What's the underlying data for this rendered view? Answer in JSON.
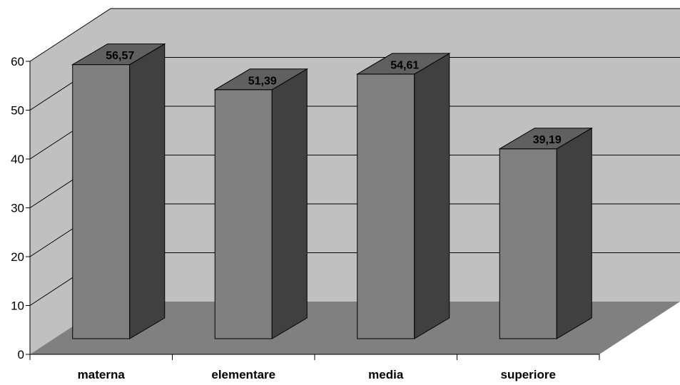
{
  "chart_data": {
    "type": "bar",
    "categories": [
      "materna",
      "elementare",
      "media",
      "superiore"
    ],
    "values": [
      56.57,
      51.39,
      54.61,
      39.19
    ],
    "value_labels": [
      "56,57",
      "51,39",
      "54,61",
      "39,19"
    ],
    "y_ticks": [
      "0",
      "10",
      "20",
      "30",
      "40",
      "50",
      "60"
    ],
    "ylim": [
      0,
      60
    ],
    "grid": true,
    "style": "3d-column",
    "colors": {
      "wall": "#c0c0c0",
      "floor": "#808080",
      "bar_front": "#808080",
      "bar_side": "#404040",
      "bar_top": "#606060"
    }
  }
}
